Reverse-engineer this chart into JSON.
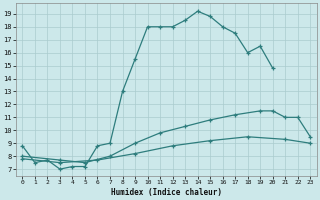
{
  "title": "",
  "xlabel": "Humidex (Indice chaleur)",
  "bg_color": "#cce8ea",
  "grid_color": "#aaccce",
  "line_color": "#2e7d7d",
  "xlim": [
    -0.5,
    23.5
  ],
  "ylim": [
    6.5,
    19.8
  ],
  "xticks": [
    0,
    1,
    2,
    3,
    4,
    5,
    6,
    7,
    8,
    9,
    10,
    11,
    12,
    13,
    14,
    15,
    16,
    17,
    18,
    19,
    20,
    21,
    22,
    23
  ],
  "yticks": [
    7,
    8,
    9,
    10,
    11,
    12,
    13,
    14,
    15,
    16,
    17,
    18,
    19
  ],
  "line1_x": [
    0,
    1,
    2,
    3,
    4,
    5,
    6,
    7,
    8,
    9,
    10,
    11,
    12,
    13,
    14,
    15,
    16,
    17,
    18,
    19,
    20
  ],
  "line1_y": [
    8.8,
    7.5,
    7.7,
    7.0,
    7.2,
    7.2,
    8.8,
    9.0,
    13.0,
    15.5,
    18.0,
    18.0,
    18.0,
    18.5,
    19.2,
    18.8,
    18.0,
    17.5,
    16.0,
    16.5,
    14.8
  ],
  "line2_x": [
    0,
    3,
    5,
    7,
    9,
    11,
    13,
    15,
    17,
    19,
    20,
    21,
    22,
    23
  ],
  "line2_y": [
    8.0,
    7.7,
    7.5,
    8.0,
    9.0,
    9.8,
    10.3,
    10.8,
    11.2,
    11.5,
    11.5,
    11.0,
    11.0,
    9.5
  ],
  "line3_x": [
    0,
    3,
    6,
    9,
    12,
    15,
    18,
    21,
    23
  ],
  "line3_y": [
    7.8,
    7.5,
    7.7,
    8.2,
    8.8,
    9.2,
    9.5,
    9.3,
    9.0
  ]
}
